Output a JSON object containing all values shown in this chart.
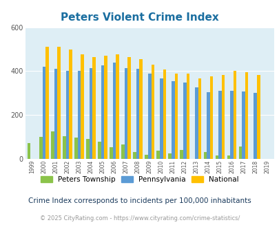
{
  "title": "Peters Violent Crime Index",
  "years": [
    1999,
    2000,
    2001,
    2002,
    2003,
    2004,
    2005,
    2006,
    2007,
    2008,
    2009,
    2010,
    2011,
    2012,
    2013,
    2014,
    2015,
    2016,
    2017,
    2018,
    2019
  ],
  "peters": [
    72,
    100,
    125,
    105,
    98,
    92,
    78,
    52,
    65,
    30,
    18,
    38,
    25,
    42,
    0,
    32,
    15,
    16,
    55,
    0,
    0
  ],
  "pennsylvania": [
    0,
    420,
    410,
    400,
    400,
    413,
    425,
    440,
    415,
    410,
    388,
    367,
    355,
    348,
    325,
    303,
    310,
    310,
    306,
    300,
    0
  ],
  "national": [
    0,
    510,
    510,
    498,
    475,
    463,
    470,
    475,
    465,
    455,
    430,
    406,
    388,
    388,
    367,
    376,
    383,
    400,
    395,
    383,
    0
  ],
  "colors": {
    "peters": "#8bc34a",
    "pennsylvania": "#5b9bd5",
    "national": "#ffc000"
  },
  "bg_color": "#deeef5",
  "ylim": [
    0,
    600
  ],
  "yticks": [
    0,
    200,
    400,
    600
  ],
  "legend_labels": [
    "Peters Township",
    "Pennsylvania",
    "National"
  ],
  "subtitle": "Crime Index corresponds to incidents per 100,000 inhabitants",
  "footer": "© 2025 CityRating.com - https://www.cityrating.com/crime-statistics/",
  "title_color": "#1a6ea0",
  "subtitle_color": "#1a3a5c",
  "footer_color": "#999999",
  "footer_url_color": "#4488aa"
}
